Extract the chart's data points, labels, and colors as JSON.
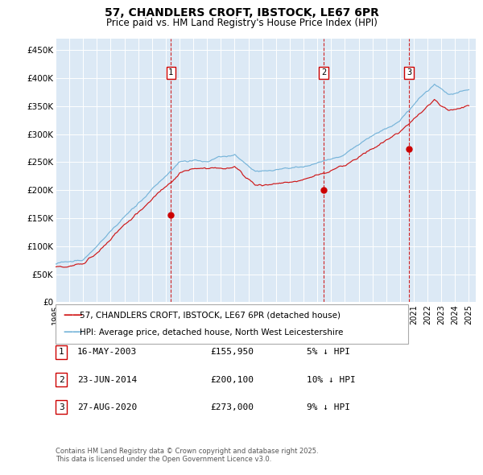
{
  "title": "57, CHANDLERS CROFT, IBSTOCK, LE67 6PR",
  "subtitle": "Price paid vs. HM Land Registry's House Price Index (HPI)",
  "background_color": "#ffffff",
  "plot_bg_color": "#dce9f5",
  "ylim": [
    0,
    470000
  ],
  "yticks": [
    0,
    50000,
    100000,
    150000,
    200000,
    250000,
    300000,
    350000,
    400000,
    450000
  ],
  "ytick_labels": [
    "£0",
    "£50K",
    "£100K",
    "£150K",
    "£200K",
    "£250K",
    "£300K",
    "£350K",
    "£400K",
    "£450K"
  ],
  "legend_line1": "57, CHANDLERS CROFT, IBSTOCK, LE67 6PR (detached house)",
  "legend_line2": "HPI: Average price, detached house, North West Leicestershire",
  "footnote": "Contains HM Land Registry data © Crown copyright and database right 2025.\nThis data is licensed under the Open Government Licence v3.0.",
  "sale1_label": "1",
  "sale1_date": "16-MAY-2003",
  "sale1_price": "£155,950",
  "sale1_pct": "5% ↓ HPI",
  "sale1_x": 2003.37,
  "sale1_y": 155950,
  "sale2_label": "2",
  "sale2_date": "23-JUN-2014",
  "sale2_price": "£200,100",
  "sale2_pct": "10% ↓ HPI",
  "sale2_x": 2014.47,
  "sale2_y": 200100,
  "sale3_label": "3",
  "sale3_date": "27-AUG-2020",
  "sale3_price": "£273,000",
  "sale3_pct": "9% ↓ HPI",
  "sale3_x": 2020.65,
  "sale3_y": 273000,
  "hpi_color": "#6baed6",
  "sale_color": "#cc0000",
  "vline_color": "#cc0000",
  "marker_box_color": "#cc0000",
  "xlim_start": 1995,
  "xlim_end": 2025.5,
  "xtick_years": [
    1995,
    1996,
    1997,
    1998,
    1999,
    2000,
    2001,
    2002,
    2003,
    2004,
    2005,
    2006,
    2007,
    2008,
    2009,
    2010,
    2011,
    2012,
    2013,
    2014,
    2015,
    2016,
    2017,
    2018,
    2019,
    2020,
    2021,
    2022,
    2023,
    2024,
    2025
  ]
}
